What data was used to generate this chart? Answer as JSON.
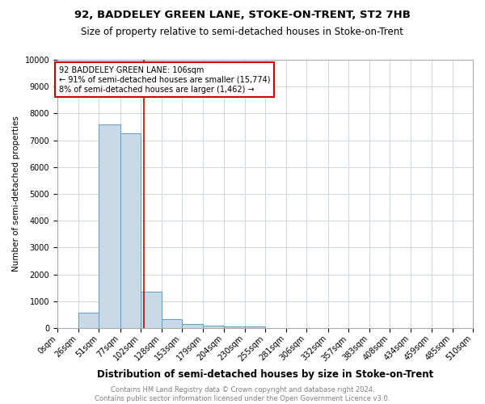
{
  "title": "92, BADDELEY GREEN LANE, STOKE-ON-TRENT, ST2 7HB",
  "subtitle": "Size of property relative to semi-detached houses in Stoke-on-Trent",
  "xlabel": "Distribution of semi-detached houses by size in Stoke-on-Trent",
  "ylabel": "Number of semi-detached properties",
  "footer": "Contains HM Land Registry data © Crown copyright and database right 2024.\nContains public sector information licensed under the Open Government Licence v3.0.",
  "bin_labels": [
    "0sqm",
    "26sqm",
    "51sqm",
    "77sqm",
    "102sqm",
    "128sqm",
    "153sqm",
    "179sqm",
    "204sqm",
    "230sqm",
    "255sqm",
    "281sqm",
    "306sqm",
    "332sqm",
    "357sqm",
    "383sqm",
    "408sqm",
    "434sqm",
    "459sqm",
    "485sqm",
    "510sqm"
  ],
  "bin_edges": [
    0,
    26,
    51,
    77,
    102,
    128,
    153,
    179,
    204,
    230,
    255,
    281,
    306,
    332,
    357,
    383,
    408,
    434,
    459,
    485,
    510
  ],
  "bar_heights": [
    0,
    570,
    7600,
    7250,
    1350,
    320,
    150,
    90,
    70,
    50,
    0,
    0,
    0,
    0,
    0,
    0,
    0,
    0,
    0,
    0
  ],
  "bar_color": "#c9d9e8",
  "bar_edge_color": "#5a9fc8",
  "property_size": 106,
  "vline_color": "#cc0000",
  "annotation_text": "92 BADDELEY GREEN LANE: 106sqm\n← 91% of semi-detached houses are smaller (15,774)\n8% of semi-detached houses are larger (1,462) →",
  "annotation_box_color": "#cc0000",
  "ylim": [
    0,
    10000
  ],
  "yticks": [
    0,
    1000,
    2000,
    3000,
    4000,
    5000,
    6000,
    7000,
    8000,
    9000,
    10000
  ],
  "title_fontsize": 9.5,
  "subtitle_fontsize": 8.5,
  "xlabel_fontsize": 8.5,
  "ylabel_fontsize": 7.5,
  "tick_fontsize": 7,
  "annotation_fontsize": 7,
  "footer_fontsize": 6,
  "grid_color": "#d0d8e0"
}
